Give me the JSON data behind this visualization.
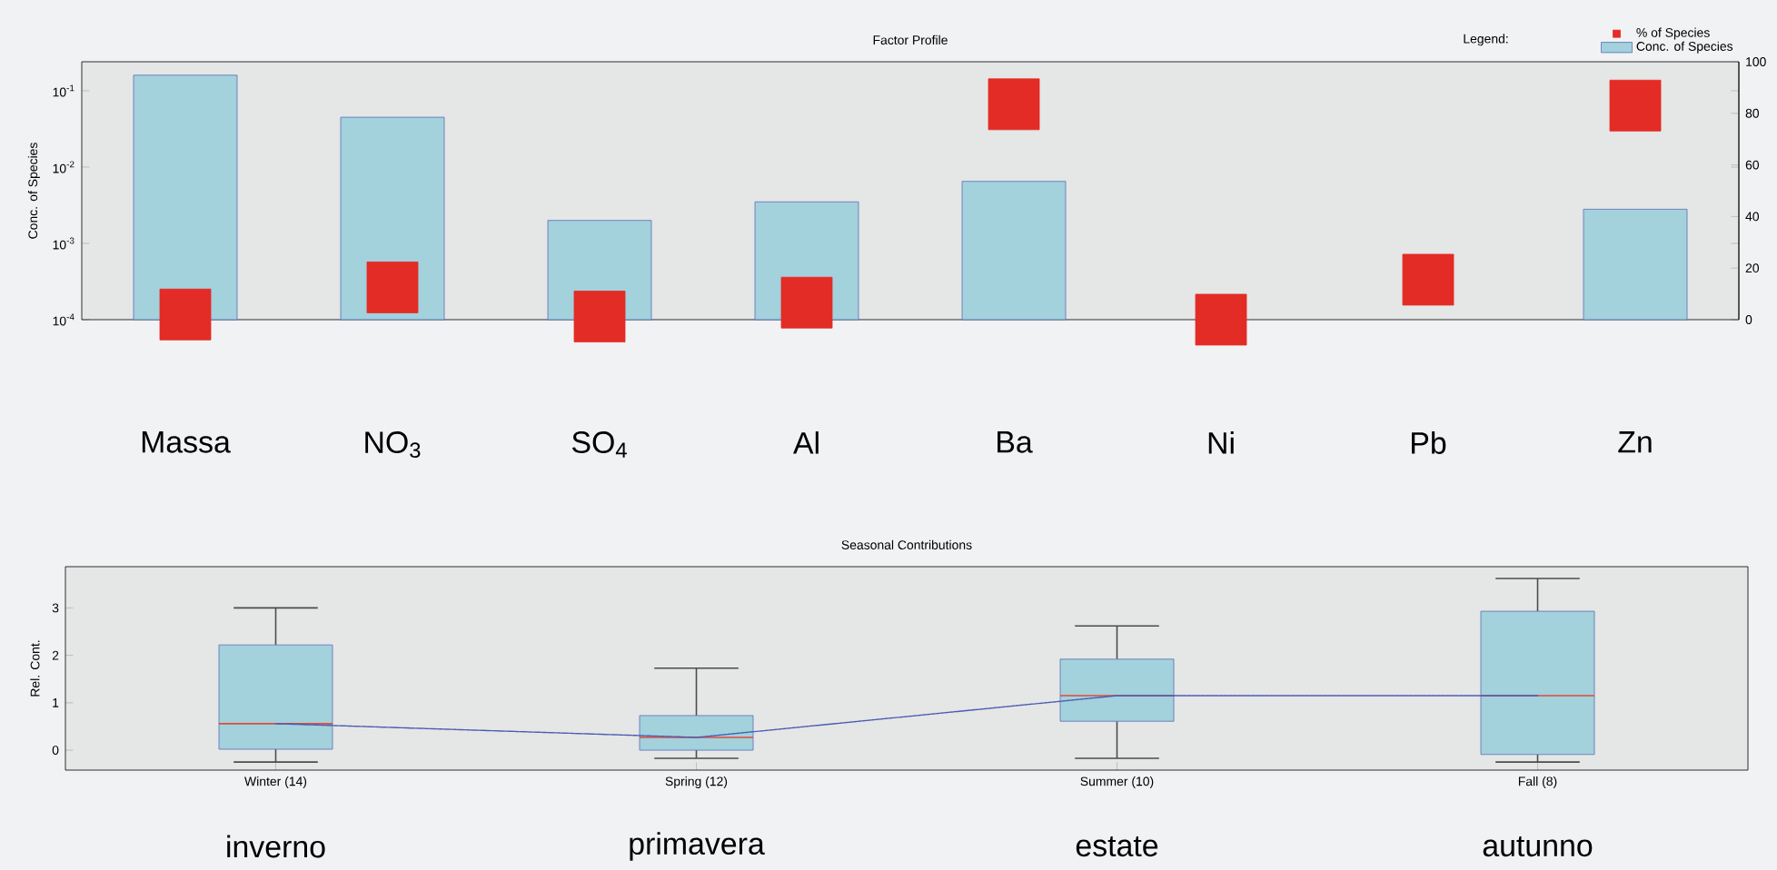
{
  "chart_data": [
    {
      "type": "bar",
      "title": "Factor Profile",
      "ylabel": "Conc. of Species",
      "log": "y",
      "legend": "top right",
      "legend_title": "Legend:",
      "categories": [
        "Massa",
        "NO$_{3}$",
        "SO$_{4}$",
        "Al",
        "Ba",
        "Ni",
        "Pb",
        "Zn"
      ],
      "ylim": [
        0.0001,
        0.24
      ],
      "yticks": [
        {
          "value": 0.0001,
          "label": "10$^{-4}$"
        },
        {
          "value": 0.001,
          "label": "10$^{-3}$"
        },
        {
          "value": 0.01,
          "label": "10$^{-2}$"
        },
        {
          "value": 0.1,
          "label": "10$^{-1}$"
        }
      ],
      "y2lim": [
        0,
        100
      ],
      "y2ticks": [
        0,
        20,
        40,
        60,
        80,
        100
      ],
      "series": [
        {
          "name": "Conc. of Species",
          "type": "bar",
          "color": "#a3d1dc",
          "values": [
            0.16,
            0.045,
            0.002,
            0.0035,
            0.0065,
            null,
            null,
            0.0028
          ]
        },
        {
          "name": "% of Species",
          "type": "scatter",
          "axis": "y2",
          "marker": "square",
          "color": "#e32c26",
          "values": [
            2,
            12.5,
            1.2,
            6.6,
            83.5,
            0,
            15.5,
            83
          ]
        }
      ]
    },
    {
      "type": "box",
      "title": "Seasonal Contributions",
      "ylabel": "Rel. Cont.",
      "color": "#a3d1dc",
      "categories": [
        "Winter (14)",
        "Spring (12)",
        "Summer (10)",
        "Fall (8)"
      ],
      "ylim": [
        -0.42,
        3.87
      ],
      "yticks": [
        0,
        1,
        2,
        3
      ],
      "boxes": [
        {
          "low": -0.25,
          "q1": 0.02,
          "median": 0.56,
          "q3": 2.22,
          "high": 3.0
        },
        {
          "low": -0.17,
          "q1": 0.0,
          "median": 0.27,
          "q3": 0.73,
          "high": 1.73
        },
        {
          "low": -0.17,
          "q1": 0.61,
          "median": 1.15,
          "q3": 1.92,
          "high": 2.62
        },
        {
          "low": -0.25,
          "q1": -0.09,
          "median": 1.15,
          "q3": 2.93,
          "high": 3.62
        }
      ],
      "series": [
        {
          "type": "line",
          "color": "#4a5cb3",
          "line_style": "dotted",
          "values": [
            0.56,
            0.27,
            1.15,
            1.15
          ]
        }
      ],
      "annotations": [
        "inverno",
        "primavera",
        "estate",
        "autunno"
      ]
    }
  ]
}
